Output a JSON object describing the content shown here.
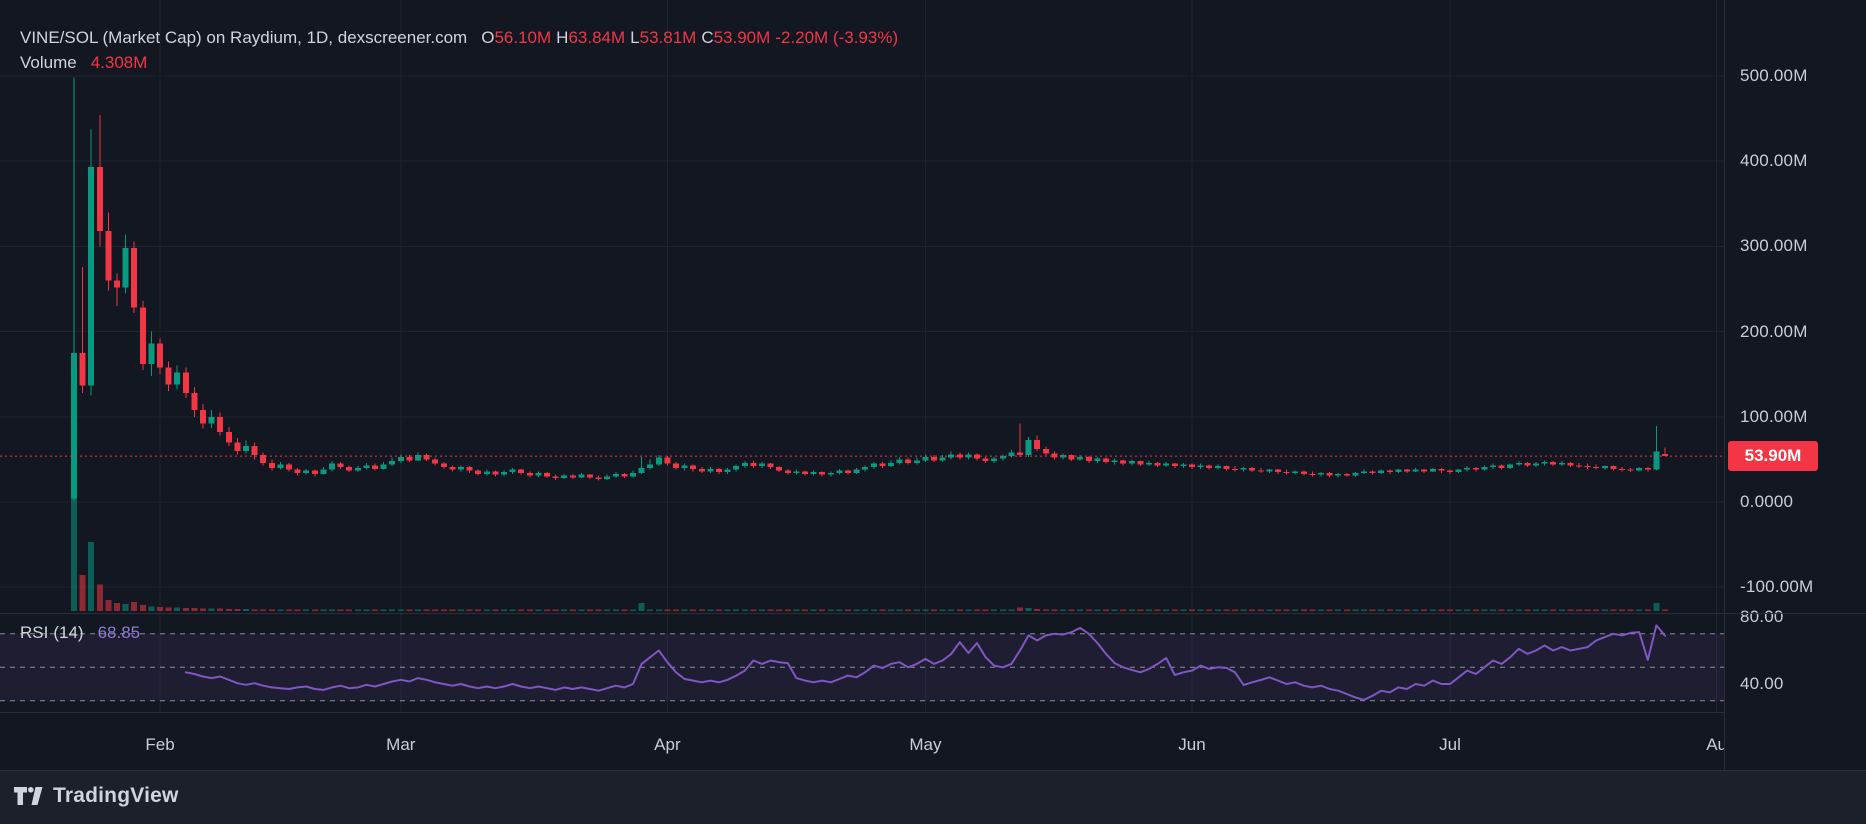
{
  "header": {
    "title": "VINE/SOL (Market Cap) on Raydium, 1D, dexscreener.com",
    "ohlc": {
      "o_label": "O",
      "o": "56.10M",
      "h_label": "H",
      "h": "63.84M",
      "l_label": "L",
      "l": "53.81M",
      "c_label": "C",
      "c": "53.90M",
      "change": "-2.20M (-3.93%)"
    },
    "volume_label": "Volume",
    "volume_value": "4.308M"
  },
  "rsi_legend": {
    "label": "RSI",
    "params": "(14)",
    "value": "68.85"
  },
  "price_label": {
    "text": "53.90M"
  },
  "footer": {
    "brand": "TradingView"
  },
  "colors": {
    "up": "#089981",
    "down": "#f23645",
    "rsi_line": "#7e57c2",
    "accent": "#f23645",
    "grid": "#1e2330",
    "axis_text": "#c9cdd6"
  },
  "chart_data": {
    "type": "candlestick",
    "title": "VINE/SOL (Market Cap) on Raydium, 1D, dexscreener.com",
    "panes": [
      "price+volume",
      "rsi"
    ],
    "units": "M (millions, market cap)",
    "grid": true,
    "legend_position": "top-left",
    "price_axis": {
      "ylim": [
        -128,
        589
      ],
      "ticks": [
        {
          "value": 500,
          "label": "500.00M"
        },
        {
          "value": 400,
          "label": "400.00M"
        },
        {
          "value": 300,
          "label": "300.00M"
        },
        {
          "value": 200,
          "label": "200.00M"
        },
        {
          "value": 100,
          "label": "100.00M"
        },
        {
          "value": 0,
          "label": "0.0000"
        },
        {
          "value": -100,
          "label": "-100.00M"
        }
      ]
    },
    "rsi_axis": {
      "ylim": [
        23,
        81
      ],
      "ticks": [
        {
          "value": 80,
          "label": "80.00"
        },
        {
          "value": 40,
          "label": "40.00"
        }
      ],
      "levels": [
        70,
        50,
        30
      ],
      "band": [
        30,
        70
      ]
    },
    "time_axis": {
      "ticks": [
        {
          "index": 10,
          "label": "Feb"
        },
        {
          "index": 38,
          "label": "Mar"
        },
        {
          "index": 69,
          "label": "Apr"
        },
        {
          "index": 99,
          "label": "May"
        },
        {
          "index": 130,
          "label": "Jun"
        },
        {
          "index": 160,
          "label": "Jul"
        },
        {
          "index": 191,
          "label": "Au"
        }
      ]
    },
    "current_price": {
      "value": 53.9,
      "label": "53.90M"
    },
    "last_candle": {
      "open": 56.1,
      "high": 63.84,
      "low": 53.81,
      "close": 53.9,
      "change": -2.2,
      "change_pct": -3.93,
      "volume": 4.308
    },
    "candles": [
      [
        4,
        498,
        2,
        175,
        2800
      ],
      [
        175,
        276,
        128,
        137,
        530
      ],
      [
        137,
        437,
        125,
        393,
        1020
      ],
      [
        393,
        454,
        300,
        318,
        390
      ],
      [
        318,
        340,
        248,
        260,
        160
      ],
      [
        260,
        268,
        230,
        252,
        120
      ],
      [
        252,
        314,
        245,
        298,
        100
      ],
      [
        298,
        306,
        222,
        228,
        130
      ],
      [
        228,
        236,
        155,
        162,
        90
      ],
      [
        162,
        200,
        148,
        186,
        70
      ],
      [
        186,
        192,
        150,
        158,
        60
      ],
      [
        158,
        165,
        130,
        138,
        55
      ],
      [
        138,
        160,
        132,
        152,
        48
      ],
      [
        152,
        158,
        122,
        128,
        45
      ],
      [
        128,
        135,
        100,
        108,
        42
      ],
      [
        108,
        115,
        86,
        92,
        40
      ],
      [
        92,
        108,
        87,
        100,
        36
      ],
      [
        100,
        105,
        78,
        82,
        34
      ],
      [
        82,
        88,
        66,
        70,
        30
      ],
      [
        70,
        75,
        56,
        60,
        28
      ],
      [
        60,
        72,
        57,
        66,
        26
      ],
      [
        66,
        70,
        50,
        55,
        24
      ],
      [
        55,
        58,
        43,
        46,
        22
      ],
      [
        46,
        50,
        37,
        40,
        20
      ],
      [
        40,
        47,
        38,
        44,
        18
      ],
      [
        44,
        46,
        36,
        38,
        16
      ],
      [
        38,
        40,
        31,
        34,
        15
      ],
      [
        34,
        39,
        32,
        37,
        14
      ],
      [
        37,
        38,
        30,
        33,
        13
      ],
      [
        33,
        41,
        32,
        38,
        14
      ],
      [
        38,
        48,
        36,
        45,
        16
      ],
      [
        45,
        47,
        39,
        41,
        13
      ],
      [
        41,
        43,
        35,
        37,
        12
      ],
      [
        37,
        42,
        35,
        40,
        11
      ],
      [
        40,
        46,
        38,
        43,
        12
      ],
      [
        43,
        45,
        37,
        39,
        11
      ],
      [
        39,
        47,
        38,
        44,
        12
      ],
      [
        44,
        52,
        42,
        48,
        14
      ],
      [
        48,
        56,
        46,
        53,
        15
      ],
      [
        53,
        55,
        47,
        49,
        12
      ],
      [
        49,
        58,
        48,
        55,
        14
      ],
      [
        55,
        57,
        48,
        50,
        11
      ],
      [
        50,
        52,
        43,
        45,
        10
      ],
      [
        45,
        47,
        39,
        41,
        9
      ],
      [
        41,
        43,
        36,
        38,
        8
      ],
      [
        38,
        43,
        36,
        41,
        8
      ],
      [
        41,
        42,
        34,
        37,
        7
      ],
      [
        37,
        38,
        31,
        33,
        7
      ],
      [
        33,
        38,
        31,
        36,
        7
      ],
      [
        36,
        37,
        30,
        32,
        6
      ],
      [
        32,
        37,
        30,
        35,
        6
      ],
      [
        35,
        40,
        33,
        38,
        7
      ],
      [
        38,
        39,
        32,
        34,
        6
      ],
      [
        34,
        36,
        29,
        31,
        6
      ],
      [
        31,
        36,
        29,
        34,
        6
      ],
      [
        34,
        35,
        28,
        30,
        5
      ],
      [
        30,
        32,
        26,
        28,
        5
      ],
      [
        28,
        33,
        27,
        31,
        5
      ],
      [
        31,
        33,
        27,
        29,
        5
      ],
      [
        29,
        34,
        28,
        32,
        5
      ],
      [
        32,
        33,
        27,
        29,
        5
      ],
      [
        29,
        31,
        25,
        27,
        5
      ],
      [
        27,
        32,
        26,
        30,
        5
      ],
      [
        30,
        35,
        28,
        33,
        6
      ],
      [
        33,
        34,
        28,
        30,
        5
      ],
      [
        30,
        37,
        29,
        34,
        6
      ],
      [
        34,
        53,
        33,
        40,
        120
      ],
      [
        40,
        50,
        38,
        44,
        25
      ],
      [
        44,
        55,
        42,
        52,
        20
      ],
      [
        52,
        54,
        43,
        45,
        15
      ],
      [
        45,
        47,
        38,
        40,
        10
      ],
      [
        40,
        45,
        37,
        43,
        9
      ],
      [
        43,
        44,
        36,
        39,
        8
      ],
      [
        39,
        41,
        34,
        36,
        7
      ],
      [
        36,
        41,
        34,
        39,
        7
      ],
      [
        39,
        40,
        33,
        35,
        6
      ],
      [
        35,
        40,
        33,
        38,
        7
      ],
      [
        38,
        44,
        36,
        42,
        8
      ],
      [
        42,
        48,
        40,
        46,
        9
      ],
      [
        46,
        48,
        40,
        42,
        7
      ],
      [
        42,
        47,
        40,
        45,
        7
      ],
      [
        45,
        46,
        39,
        41,
        6
      ],
      [
        41,
        42,
        35,
        37,
        6
      ],
      [
        37,
        39,
        32,
        34,
        5
      ],
      [
        34,
        38,
        32,
        36,
        5
      ],
      [
        36,
        37,
        31,
        33,
        5
      ],
      [
        33,
        37,
        31,
        35,
        5
      ],
      [
        35,
        36,
        30,
        32,
        5
      ],
      [
        32,
        36,
        30,
        34,
        5
      ],
      [
        34,
        39,
        32,
        37,
        6
      ],
      [
        37,
        38,
        32,
        34,
        5
      ],
      [
        34,
        40,
        33,
        38,
        6
      ],
      [
        38,
        43,
        36,
        41,
        7
      ],
      [
        41,
        47,
        39,
        45,
        8
      ],
      [
        45,
        47,
        40,
        42,
        6
      ],
      [
        42,
        49,
        41,
        46,
        8
      ],
      [
        46,
        53,
        44,
        50,
        9
      ],
      [
        50,
        52,
        44,
        46,
        7
      ],
      [
        46,
        52,
        44,
        49,
        8
      ],
      [
        49,
        56,
        47,
        53,
        9
      ],
      [
        53,
        55,
        47,
        49,
        7
      ],
      [
        49,
        55,
        47,
        52,
        8
      ],
      [
        52,
        59,
        50,
        56,
        9
      ],
      [
        56,
        58,
        50,
        52,
        7
      ],
      [
        52,
        58,
        50,
        56,
        8
      ],
      [
        56,
        57,
        49,
        51,
        7
      ],
      [
        51,
        53,
        46,
        48,
        6
      ],
      [
        48,
        53,
        46,
        51,
        7
      ],
      [
        51,
        56,
        49,
        54,
        8
      ],
      [
        54,
        61,
        52,
        58,
        10
      ],
      [
        58,
        92,
        53,
        55,
        50
      ],
      [
        55,
        76,
        53,
        73,
        45
      ],
      [
        73,
        78,
        60,
        62,
        30
      ],
      [
        62,
        65,
        54,
        57,
        15
      ],
      [
        57,
        60,
        50,
        52,
        10
      ],
      [
        52,
        57,
        50,
        55,
        9
      ],
      [
        55,
        56,
        48,
        50,
        8
      ],
      [
        50,
        55,
        48,
        53,
        8
      ],
      [
        53,
        54,
        46,
        48,
        7
      ],
      [
        48,
        53,
        46,
        51,
        7
      ],
      [
        51,
        52,
        45,
        47,
        6
      ],
      [
        47,
        51,
        44,
        49,
        6
      ],
      [
        49,
        50,
        43,
        45,
        6
      ],
      [
        45,
        50,
        43,
        48,
        6
      ],
      [
        48,
        49,
        42,
        44,
        5
      ],
      [
        44,
        48,
        42,
        46,
        5
      ],
      [
        46,
        47,
        41,
        43,
        5
      ],
      [
        43,
        47,
        41,
        45,
        5
      ],
      [
        45,
        46,
        40,
        42,
        5
      ],
      [
        42,
        46,
        40,
        44,
        5
      ],
      [
        44,
        45,
        39,
        41,
        5
      ],
      [
        41,
        45,
        39,
        43,
        5
      ],
      [
        43,
        44,
        38,
        40,
        4
      ],
      [
        40,
        44,
        38,
        42,
        4
      ],
      [
        42,
        43,
        37,
        39,
        4
      ],
      [
        39,
        42,
        36,
        38,
        4
      ],
      [
        38,
        41,
        36,
        40,
        4
      ],
      [
        40,
        41,
        35,
        37,
        4
      ],
      [
        37,
        40,
        34,
        36,
        4
      ],
      [
        36,
        39,
        34,
        38,
        4
      ],
      [
        38,
        39,
        33,
        35,
        4
      ],
      [
        35,
        38,
        32,
        34,
        3
      ],
      [
        34,
        37,
        32,
        36,
        3
      ],
      [
        36,
        37,
        31,
        33,
        3
      ],
      [
        33,
        36,
        30,
        32,
        3
      ],
      [
        32,
        35,
        30,
        34,
        3
      ],
      [
        34,
        35,
        29,
        31,
        3
      ],
      [
        31,
        34,
        29,
        33,
        3
      ],
      [
        33,
        34,
        30,
        31,
        3
      ],
      [
        31,
        35,
        30,
        34,
        3
      ],
      [
        34,
        38,
        33,
        36,
        4
      ],
      [
        36,
        37,
        32,
        34,
        3
      ],
      [
        34,
        38,
        33,
        37,
        4
      ],
      [
        37,
        38,
        33,
        35,
        3
      ],
      [
        35,
        39,
        34,
        38,
        4
      ],
      [
        38,
        39,
        34,
        36,
        3
      ],
      [
        36,
        40,
        35,
        38,
        4
      ],
      [
        38,
        39,
        34,
        36,
        3
      ],
      [
        36,
        40,
        35,
        39,
        4
      ],
      [
        39,
        40,
        34,
        37,
        3
      ],
      [
        37,
        38,
        33,
        35,
        3
      ],
      [
        35,
        39,
        34,
        38,
        4
      ],
      [
        38,
        42,
        36,
        40,
        5
      ],
      [
        40,
        41,
        36,
        38,
        4
      ],
      [
        38,
        43,
        37,
        41,
        5
      ],
      [
        41,
        45,
        39,
        43,
        5
      ],
      [
        43,
        44,
        38,
        40,
        4
      ],
      [
        40,
        45,
        39,
        44,
        5
      ],
      [
        44,
        48,
        42,
        46,
        6
      ],
      [
        46,
        47,
        41,
        43,
        5
      ],
      [
        43,
        47,
        41,
        45,
        5
      ],
      [
        45,
        49,
        43,
        47,
        6
      ],
      [
        47,
        48,
        42,
        44,
        5
      ],
      [
        44,
        48,
        42,
        46,
        5
      ],
      [
        46,
        47,
        41,
        43,
        4
      ],
      [
        43,
        46,
        40,
        42,
        4
      ],
      [
        42,
        45,
        39,
        41,
        4
      ],
      [
        41,
        44,
        38,
        40,
        4
      ],
      [
        40,
        43,
        38,
        42,
        4
      ],
      [
        42,
        43,
        37,
        39,
        4
      ],
      [
        39,
        41,
        36,
        38,
        4
      ],
      [
        38,
        40,
        35,
        37,
        4
      ],
      [
        37,
        41,
        36,
        40,
        5
      ],
      [
        40,
        41,
        36,
        38,
        4
      ],
      [
        38,
        89,
        37,
        59,
        120
      ],
      [
        56.1,
        63.84,
        53.81,
        53.9,
        4.308
      ]
    ],
    "rsi": {
      "start_index": 13,
      "period": 14,
      "current": 68.85,
      "values": [
        47,
        46,
        44.5,
        43.5,
        44.5,
        42.5,
        40.5,
        39.5,
        40.5,
        39,
        38,
        37.5,
        37,
        38,
        38.5,
        37,
        36.5,
        38,
        39,
        37.5,
        38,
        39.5,
        38.5,
        40,
        41.5,
        42.5,
        41.5,
        43.5,
        42.5,
        41,
        40,
        39,
        40,
        38.5,
        37.5,
        38.5,
        37.5,
        38.5,
        40,
        38.5,
        37.5,
        38.5,
        37.5,
        36.5,
        38,
        37,
        38,
        37,
        36,
        37.5,
        39,
        38,
        40,
        52,
        56,
        60,
        53,
        47,
        43,
        42,
        41,
        42,
        41,
        42.5,
        45,
        48,
        54,
        52,
        54,
        53,
        52.5,
        43.5,
        42,
        41,
        42,
        41,
        43,
        45,
        44,
        47,
        51,
        49.5,
        52,
        53,
        50,
        52,
        55,
        52,
        54,
        58,
        65,
        58.5,
        64.5,
        56,
        51,
        50,
        52,
        60,
        69,
        66,
        69,
        70,
        69.5,
        71,
        73.5,
        70,
        64.5,
        58,
        52.5,
        50,
        48.4,
        47,
        49,
        52,
        55.5,
        45.4,
        47,
        48,
        51,
        49,
        50,
        49.6,
        47,
        39.4,
        41,
        42.4,
        44,
        42,
        40,
        41,
        39,
        38,
        39,
        37,
        36,
        34,
        32,
        30.5,
        33,
        36,
        35,
        38,
        37,
        40,
        39,
        42,
        40,
        40,
        44,
        48,
        46,
        50,
        54,
        52,
        56,
        61,
        58,
        60,
        63,
        60,
        62,
        60,
        61,
        62,
        66,
        68,
        70,
        69,
        70.5,
        71,
        54.4,
        75,
        68.85
      ]
    }
  }
}
